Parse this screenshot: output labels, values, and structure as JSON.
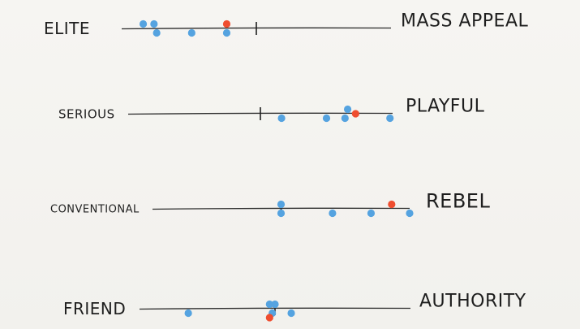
{
  "colors": {
    "blue_dot": "#55a3e0",
    "red_dot": "#ef4d2f",
    "ink": "#1e1e1e"
  },
  "scales": [
    {
      "left_label": "ELITE",
      "right_label": "MASS APPEAL",
      "left_size": 20,
      "right_size": 22,
      "midpoint": 0.5,
      "blue_points": [
        {
          "value": 0.08,
          "offset": -1
        },
        {
          "value": 0.12,
          "offset": -1
        },
        {
          "value": 0.13,
          "offset": 1
        },
        {
          "value": 0.26,
          "offset": 1
        },
        {
          "value": 0.39,
          "offset": 1
        }
      ],
      "red_points": [
        {
          "value": 0.39,
          "offset": -1
        }
      ]
    },
    {
      "left_label": "SERIOUS",
      "right_label": "PLAYFUL",
      "left_size": 15,
      "right_size": 22,
      "midpoint": 0.5,
      "blue_points": [
        {
          "value": 0.58,
          "offset": 1
        },
        {
          "value": 0.75,
          "offset": 1
        },
        {
          "value": 0.82,
          "offset": 1
        },
        {
          "value": 0.83,
          "offset": -1
        },
        {
          "value": 0.99,
          "offset": 1
        }
      ],
      "red_points": [
        {
          "value": 0.86,
          "offset": 0
        }
      ]
    },
    {
      "left_label": "CONVENTIONAL",
      "right_label": "REBEL",
      "left_size": 13,
      "right_size": 24,
      "midpoint": 0.5,
      "blue_points": [
        {
          "value": 0.5,
          "offset": -1
        },
        {
          "value": 0.5,
          "offset": 1
        },
        {
          "value": 0.7,
          "offset": 1
        },
        {
          "value": 0.85,
          "offset": 1
        },
        {
          "value": 1.0,
          "offset": 1
        }
      ],
      "red_points": [
        {
          "value": 0.93,
          "offset": -1
        }
      ]
    },
    {
      "left_label": "FRIEND",
      "right_label": "AUTHORITY",
      "left_size": 20,
      "right_size": 22,
      "midpoint": 0.5,
      "blue_points": [
        {
          "value": 0.18,
          "offset": 1
        },
        {
          "value": 0.48,
          "offset": -1
        },
        {
          "value": 0.5,
          "offset": -1
        },
        {
          "value": 0.49,
          "offset": 1
        },
        {
          "value": 0.56,
          "offset": 1
        }
      ],
      "red_points": [
        {
          "value": 0.48,
          "offset": 2
        }
      ]
    }
  ]
}
